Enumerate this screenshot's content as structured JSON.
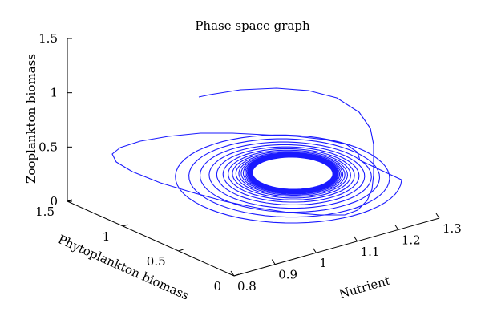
{
  "chart_data": {
    "type": "line",
    "projection": "3d",
    "title": "Phase space graph",
    "xlabel": "Nutrient",
    "ylabel": "Phytoplankton biomass",
    "zlabel": "Zooplankton biomass",
    "xlim": [
      0.8,
      1.3
    ],
    "ylim": [
      0,
      1.5
    ],
    "zlim": [
      0,
      1.5
    ],
    "xticks": [
      "0.8",
      "0.9",
      "1",
      "1.1",
      "1.2",
      "1.3"
    ],
    "yticks": [
      "0",
      "0.5",
      "1",
      "1.5"
    ],
    "zticks": [
      "0",
      "0.5",
      "1",
      "1.5"
    ],
    "grid": false,
    "line_color": "#1a1aff",
    "series": [
      {
        "description_path": "spiral trajectory converging to limit cycle",
        "start": {
          "x": 1.02,
          "y": 0.05,
          "z": 0.95
        },
        "limit_cycle": {
          "x_center": 1.02,
          "y_center": 0.55,
          "z_center": 0.25
        }
      }
    ]
  }
}
